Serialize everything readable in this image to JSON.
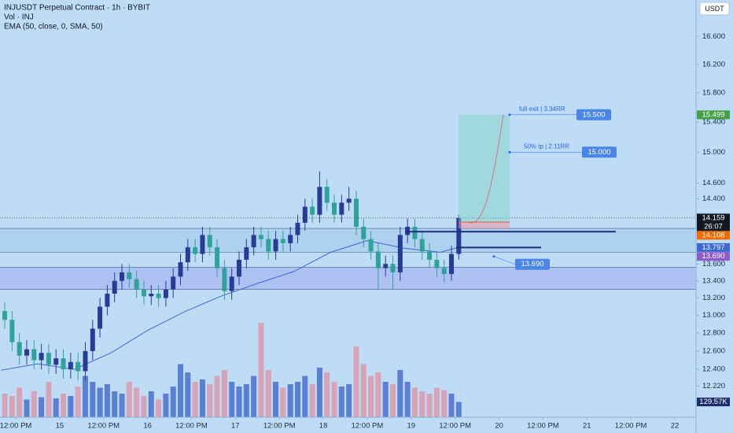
{
  "chart_data": {
    "type": "candlestick",
    "title": "INJUSDT Perpetual Contract · 1h · BYBIT",
    "volume_label": "Vol · INJ",
    "indicator_label": "EMA (50, close, 0, SMA, 50)",
    "currency": "USDT",
    "log_scale": true,
    "up_color": "#263c96",
    "down_color": "#2ea39b",
    "volume_up_color": "#5a7fd3",
    "volume_down_color": "#d6a4b6",
    "xlim": [
      -0.3,
      189.8
    ],
    "ylim": [
      11.89,
      17.14
    ],
    "y2lim": [
      0,
      1000000
    ],
    "xticks": [
      {
        "value": 4,
        "label": "12:00 PM"
      },
      {
        "value": 16,
        "label": "15"
      },
      {
        "value": 28,
        "label": "12:00 PM"
      },
      {
        "value": 40,
        "label": "16"
      },
      {
        "value": 52,
        "label": "12:00 PM"
      },
      {
        "value": 64,
        "label": "17"
      },
      {
        "value": 76,
        "label": "12:00 PM"
      },
      {
        "value": 88,
        "label": "18"
      },
      {
        "value": 100,
        "label": "12:00 PM"
      },
      {
        "value": 112,
        "label": "19"
      },
      {
        "value": 124,
        "label": "12:00 PM"
      },
      {
        "value": 136,
        "label": "20"
      },
      {
        "value": 148,
        "label": "12:00 PM"
      },
      {
        "value": 160,
        "label": "21"
      },
      {
        "value": 172,
        "label": "12:00 PM"
      },
      {
        "value": 184,
        "label": "22"
      }
    ],
    "yticks": [
      {
        "value": 16.6,
        "label": "16.600"
      },
      {
        "value": 16.2,
        "label": "16.200"
      },
      {
        "value": 15.8,
        "label": "15.800"
      },
      {
        "value": 15.4,
        "label": "15.400"
      },
      {
        "value": 15,
        "label": "15.000"
      },
      {
        "value": 14.6,
        "label": "14.600"
      },
      {
        "value": 14.4,
        "label": "14.400"
      },
      {
        "value": 13.6,
        "label": "13.600"
      },
      {
        "value": 13.4,
        "label": "13.400"
      },
      {
        "value": 13.2,
        "label": "13.200"
      },
      {
        "value": 13,
        "label": "13.000"
      },
      {
        "value": 12.8,
        "label": "12.800"
      },
      {
        "value": 12.6,
        "label": "12.600"
      },
      {
        "value": 12.4,
        "label": "12.400"
      },
      {
        "value": 12.22,
        "label": "12.220"
      }
    ],
    "x": [
      1,
      3,
      5,
      7,
      9,
      11,
      13,
      15,
      17,
      19,
      21,
      23,
      25,
      27,
      29,
      31,
      33,
      35,
      37,
      39,
      41,
      43,
      45,
      47,
      49,
      51,
      53,
      55,
      57,
      59,
      61,
      63,
      65,
      67,
      69,
      71,
      73,
      75,
      77,
      79,
      81,
      83,
      85,
      87,
      89,
      91,
      93,
      95,
      97,
      99,
      101,
      103,
      105,
      107,
      109,
      111,
      113,
      115,
      117,
      119,
      121,
      123,
      125
    ],
    "open": [
      13.05,
      12.95,
      12.7,
      12.55,
      12.62,
      12.5,
      12.58,
      12.45,
      12.52,
      12.4,
      12.48,
      12.38,
      12.6,
      12.85,
      13.1,
      13.25,
      13.4,
      13.5,
      13.42,
      13.3,
      13.22,
      13.25,
      13.2,
      13.3,
      13.45,
      13.62,
      13.8,
      13.72,
      13.95,
      13.8,
      13.55,
      13.28,
      13.45,
      13.65,
      13.8,
      13.95,
      13.9,
      13.75,
      13.9,
      13.85,
      13.95,
      14.1,
      14.3,
      14.2,
      14.55,
      14.35,
      14.2,
      14.35,
      14.4,
      14.05,
      13.9,
      13.75,
      13.55,
      13.6,
      13.5,
      13.95,
      14.05,
      13.9,
      13.75,
      13.65,
      13.55,
      13.48,
      13.72
    ],
    "high": [
      13.15,
      13.05,
      12.8,
      12.72,
      12.72,
      12.68,
      12.68,
      12.62,
      12.62,
      12.58,
      12.58,
      12.7,
      12.95,
      13.2,
      13.35,
      13.5,
      13.6,
      13.6,
      13.52,
      13.4,
      13.35,
      13.35,
      13.4,
      13.55,
      13.72,
      13.9,
      13.9,
      14.05,
      14.05,
      13.9,
      13.65,
      13.55,
      13.75,
      13.9,
      14.05,
      14.05,
      14.0,
      14.0,
      14.0,
      14.05,
      14.2,
      14.4,
      14.4,
      14.75,
      14.65,
      14.45,
      14.45,
      14.55,
      14.5,
      14.15,
      14.0,
      13.85,
      13.7,
      13.7,
      14.05,
      14.15,
      14.15,
      14.0,
      13.85,
      13.75,
      13.65,
      13.82,
      14.2
    ],
    "low": [
      12.85,
      12.6,
      12.45,
      12.45,
      12.4,
      12.4,
      12.35,
      12.35,
      12.3,
      12.3,
      12.28,
      12.28,
      12.5,
      12.75,
      13.0,
      13.15,
      13.3,
      13.32,
      13.2,
      13.12,
      13.12,
      13.1,
      13.1,
      13.2,
      13.35,
      13.52,
      13.62,
      13.62,
      13.7,
      13.45,
      13.18,
      13.18,
      13.35,
      13.55,
      13.7,
      13.8,
      13.65,
      13.65,
      13.75,
      13.75,
      13.85,
      14.0,
      14.1,
      14.1,
      14.25,
      14.1,
      14.1,
      14.25,
      13.95,
      13.8,
      13.65,
      13.3,
      13.45,
      13.3,
      13.4,
      13.85,
      13.8,
      13.65,
      13.55,
      13.45,
      13.38,
      13.4,
      13.65
    ],
    "close": [
      12.95,
      12.7,
      12.55,
      12.62,
      12.5,
      12.58,
      12.45,
      12.52,
      12.4,
      12.48,
      12.38,
      12.6,
      12.85,
      13.1,
      13.25,
      13.4,
      13.5,
      13.42,
      13.3,
      13.22,
      13.25,
      13.2,
      13.3,
      13.45,
      13.62,
      13.8,
      13.72,
      13.95,
      13.8,
      13.55,
      13.28,
      13.45,
      13.65,
      13.8,
      13.95,
      13.9,
      13.75,
      13.9,
      13.85,
      13.95,
      14.1,
      14.3,
      14.2,
      14.55,
      14.35,
      14.2,
      14.35,
      14.4,
      14.05,
      13.9,
      13.75,
      13.55,
      13.6,
      13.5,
      13.95,
      14.05,
      13.9,
      13.75,
      13.65,
      13.55,
      13.48,
      13.72,
      14.16
    ],
    "volume": [
      200000,
      180000,
      250000,
      150000,
      220000,
      170000,
      300000,
      160000,
      200000,
      180000,
      260000,
      350000,
      300000,
      250000,
      280000,
      220000,
      200000,
      300000,
      250000,
      180000,
      220000,
      150000,
      200000,
      260000,
      450000,
      380000,
      300000,
      320000,
      280000,
      350000,
      400000,
      300000,
      260000,
      280000,
      350000,
      800000,
      400000,
      300000,
      250000,
      280000,
      300000,
      350000,
      280000,
      420000,
      380000,
      300000,
      260000,
      280000,
      600000,
      450000,
      350000,
      380000,
      300000,
      280000,
      400000,
      300000,
      250000,
      220000,
      200000,
      250000,
      230000,
      200000,
      129570
    ],
    "volume_tag": {
      "value": 129570,
      "label": "129.57K",
      "color": "#1e2f6e"
    },
    "ema": {
      "color": "#3d6ad0",
      "x": [
        0,
        10,
        20,
        30,
        40,
        50,
        60,
        70,
        80,
        90,
        100,
        110,
        120,
        125
      ],
      "values": [
        12.39,
        12.46,
        12.4,
        12.58,
        12.83,
        13.04,
        13.22,
        13.37,
        13.51,
        13.74,
        13.88,
        13.79,
        13.74,
        13.8
      ]
    },
    "zones": [
      {
        "from": 14.03,
        "to": 13.74,
        "color": "rgba(160,200,235,0.55)"
      },
      {
        "from": 13.56,
        "to": 13.3,
        "color": "rgba(150,160,235,0.45)"
      }
    ],
    "hlines": [
      13.99,
      13.797
    ],
    "position": {
      "entry": 14.108,
      "target": 15.5,
      "stop": 14.03
    },
    "annotations": [
      {
        "text": "full exit | 3.34RR",
        "price": {
          "value": 15.5,
          "label": "15.500"
        }
      },
      {
        "text": "50% tp | 2.11RR",
        "price": {
          "value": 15,
          "label": "15.000"
        }
      },
      {
        "price": {
          "value": 13.69,
          "label": "13.690"
        }
      }
    ],
    "price_tags": [
      {
        "value": 15.499,
        "color": "#43a047"
      },
      {
        "value": 14.159,
        "color": "#131722",
        "countdown": "26:07"
      },
      {
        "value": 14.108,
        "color": "#ef6c00"
      },
      {
        "value": 13.797,
        "color": "#3d6ad0"
      },
      {
        "value": 13.69,
        "label": "13.690",
        "color": "#8e5cc8"
      }
    ]
  }
}
